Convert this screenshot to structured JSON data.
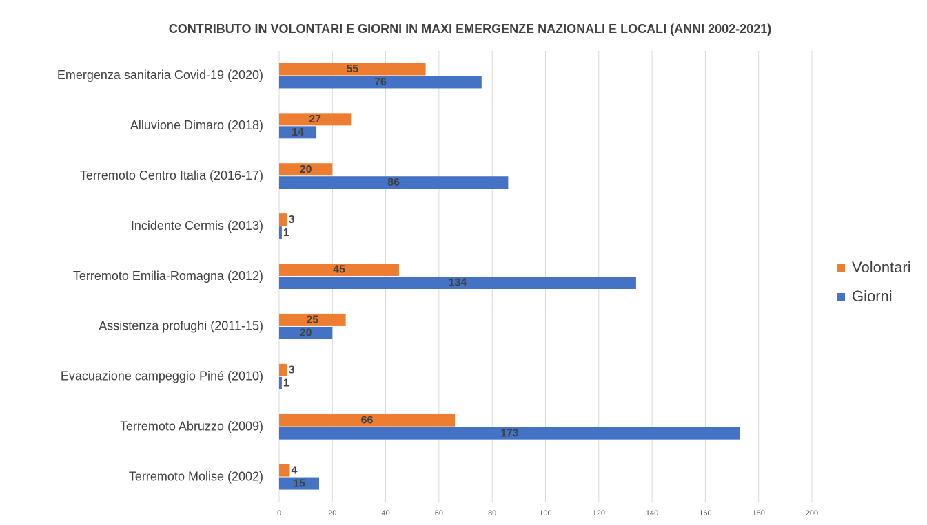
{
  "chart_data": {
    "type": "hbar",
    "title": "CONTRIBUTO IN VOLONTARI E GIORNI IN MAXI EMERGENZE NAZIONALI E LOCALI (ANNI 2002-2021)",
    "categories": [
      "Emergenza sanitaria Covid-19 (2020)",
      "Alluvione Dimaro (2018)",
      "Terremoto Centro  Italia (2016-17)",
      "Incidente Cermis (2013)",
      "Terremoto Emilia-Romagna (2012)",
      "Assistenza profughi (2011-15)",
      "Evacuazione campeggio Piné (2010)",
      "Terremoto Abruzzo (2009)",
      "Terremoto Molise (2002)"
    ],
    "series": [
      {
        "name": "Volontari",
        "color": "#ed7d31",
        "values": [
          55,
          27,
          20,
          3,
          45,
          25,
          3,
          66,
          4
        ]
      },
      {
        "name": "Giorni",
        "color": "#4472c4",
        "values": [
          76,
          14,
          86,
          1,
          134,
          20,
          1,
          173,
          15
        ]
      }
    ],
    "xlim": [
      0,
      200
    ],
    "xticks": [
      0,
      20,
      40,
      60,
      80,
      100,
      120,
      140,
      160,
      180,
      200
    ],
    "grid": true,
    "legend": "right"
  }
}
